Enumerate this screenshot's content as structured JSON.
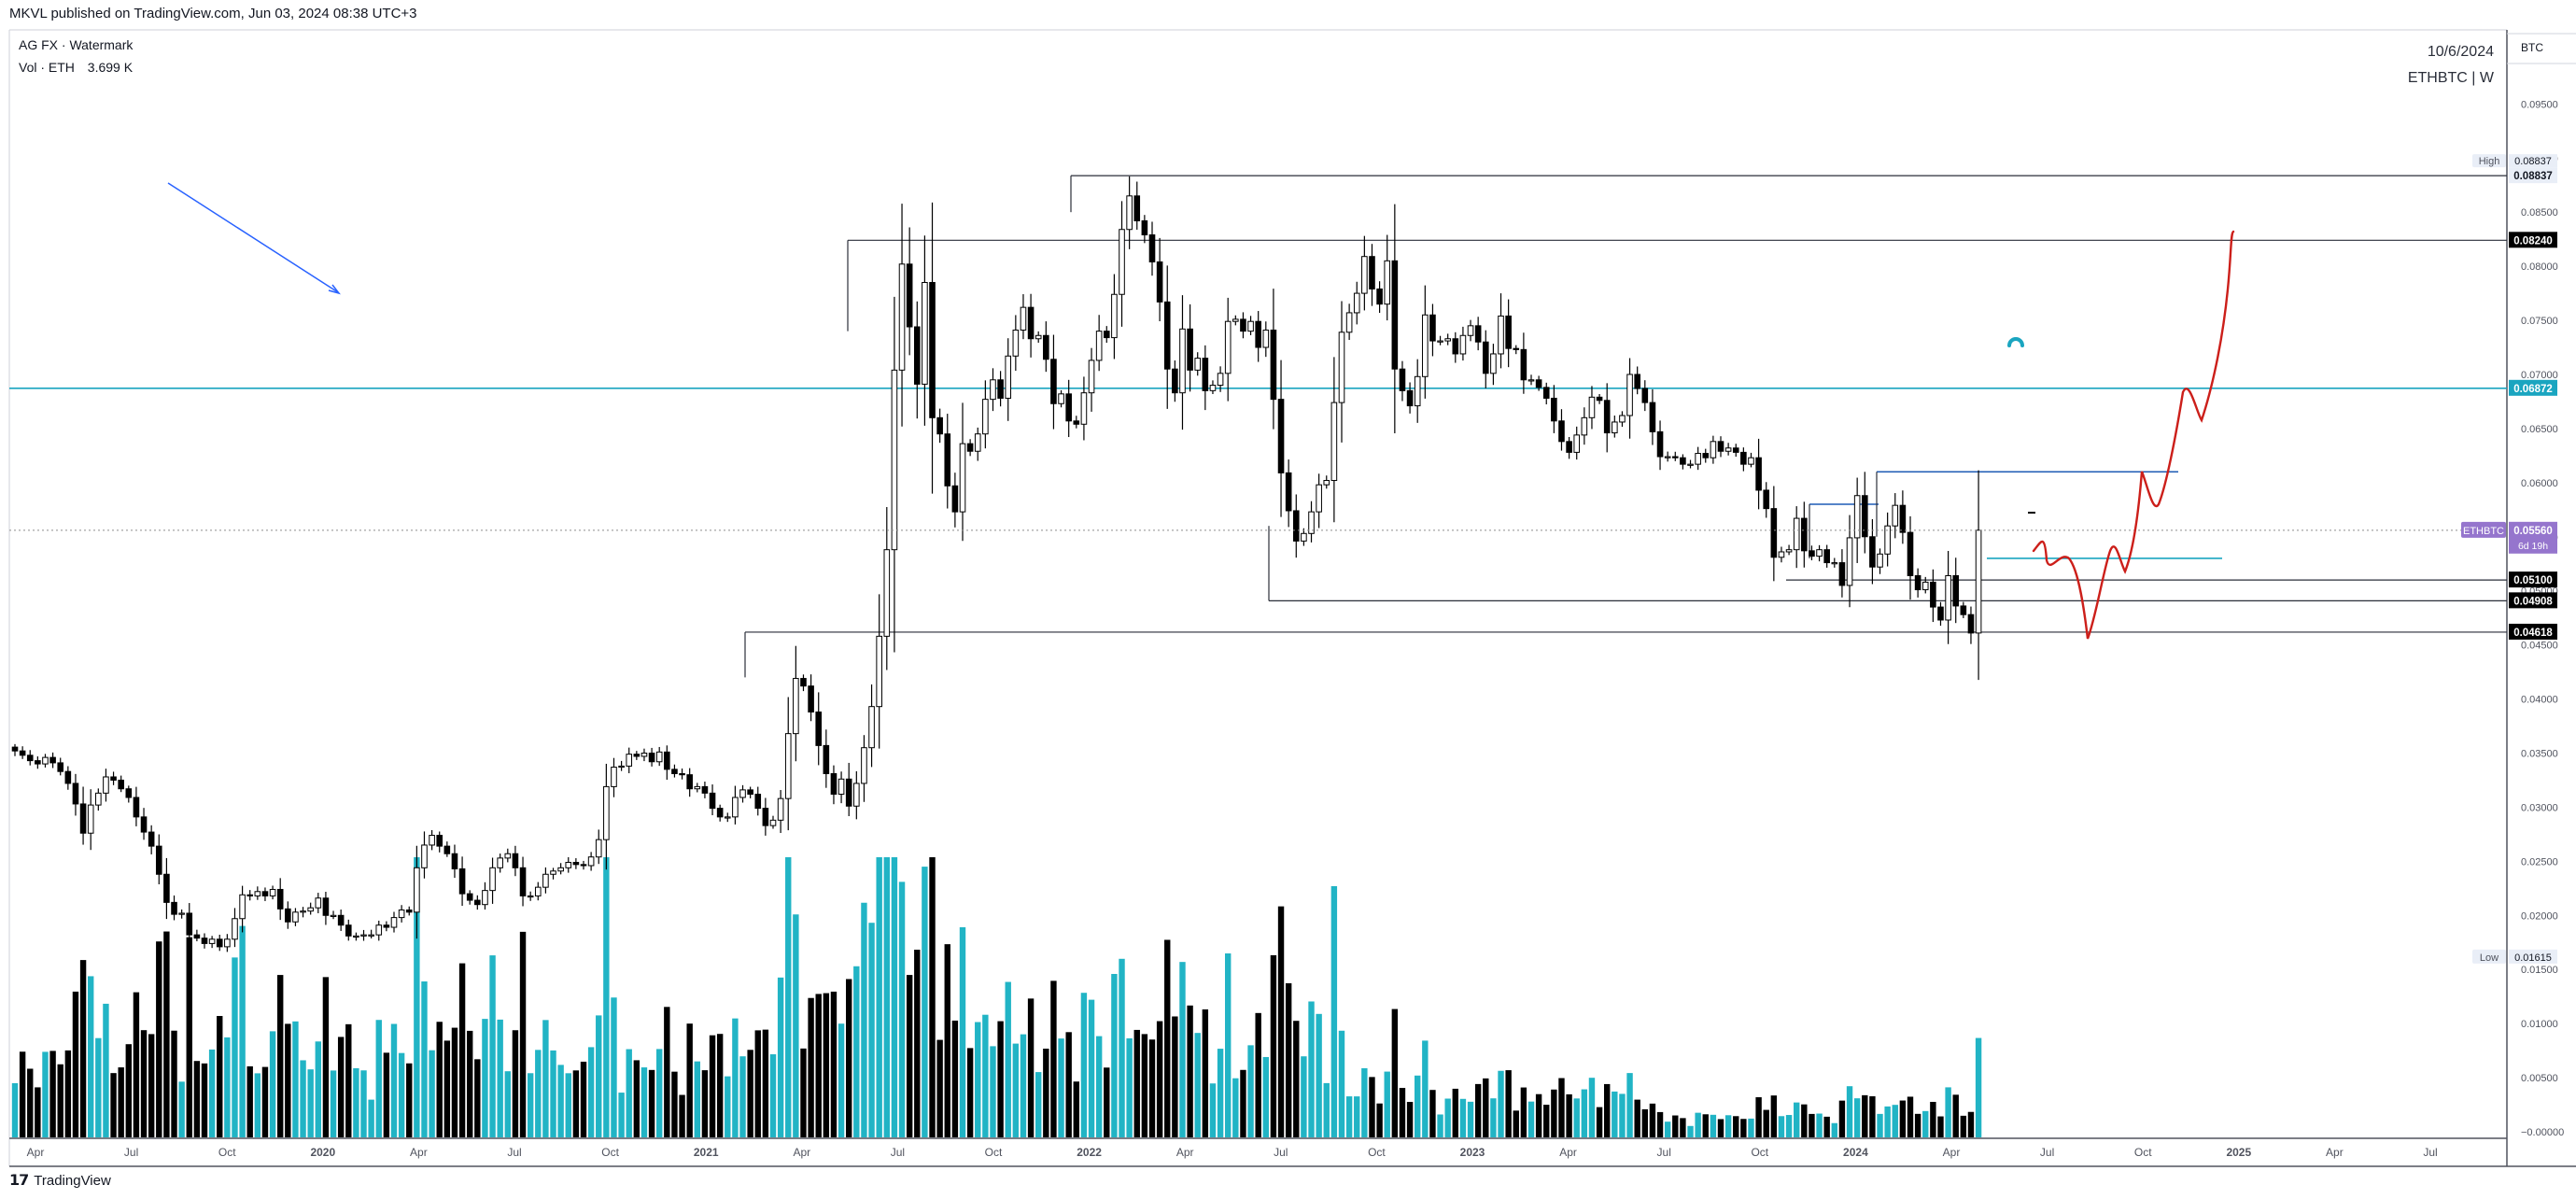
{
  "header": {
    "published": "MKVL published on TradingView.com, Jun 03, 2024 08:38 UTC+3"
  },
  "legend": {
    "title": "AG FX · Watermark",
    "volume_label": "Vol · ETH",
    "volume_value": "3.699 K"
  },
  "stamp": {
    "date": "10/6/2024",
    "symbol": "ETHBTC | W"
  },
  "footer": {
    "brand": "TradingView"
  },
  "colors": {
    "bull_candle": "#ffffff",
    "bear_candle": "#000000",
    "volume_up": "#21b4c5",
    "volume_down": "#000000",
    "horizontal_line": "#1aa5c0",
    "drawing_red": "#cc1f1a",
    "price_label_ethbtc": "#9575cd"
  },
  "chart_data": {
    "type": "candlestick",
    "currency": "BTC",
    "x_ticks": [
      "Apr",
      "Jul",
      "Oct",
      "2020",
      "Apr",
      "Jul",
      "Oct",
      "2021",
      "Apr",
      "Jul",
      "Oct",
      "2022",
      "Apr",
      "Jul",
      "Oct",
      "2023",
      "Apr",
      "Jul",
      "Oct",
      "2024",
      "Apr",
      "Jul",
      "Oct",
      "2025",
      "Apr",
      "Jul"
    ],
    "y_ticks": [
      "0.09500",
      "0.09000",
      "0.08500",
      "0.08000",
      "0.07500",
      "0.07000",
      "0.06500",
      "0.06000",
      "0.05500",
      "0.05000",
      "0.04500",
      "0.04000",
      "0.03500",
      "0.03000",
      "0.02500",
      "0.02000",
      "0.01500",
      "0.01000",
      "0.00500",
      "−0.00000"
    ],
    "y_range": [
      0.0,
      0.097
    ],
    "price_labels": {
      "high": {
        "tag": "High",
        "value": "0.08837"
      },
      "r1": {
        "value": "0.08240"
      },
      "r2": {
        "value": "0.06872"
      },
      "current": {
        "tag": "ETHBTC",
        "value": "0.05560",
        "countdown": "6d 19h"
      },
      "s1": {
        "value": "0.05100"
      },
      "s2": {
        "value": "0.04908"
      },
      "s3": {
        "value": "0.04618"
      },
      "low": {
        "tag": "Low",
        "value": "0.01615"
      }
    },
    "closes": [
      0.0352,
      0.0348,
      0.0343,
      0.034,
      0.0346,
      0.0341,
      0.0333,
      0.0322,
      0.0303,
      0.0276,
      0.0302,
      0.0313,
      0.0328,
      0.0325,
      0.0317,
      0.0309,
      0.0291,
      0.0277,
      0.0264,
      0.0238,
      0.0212,
      0.0201,
      0.0202,
      0.0182,
      0.0179,
      0.0174,
      0.0178,
      0.0171,
      0.0178,
      0.0197,
      0.0219,
      0.0218,
      0.0222,
      0.0218,
      0.0224,
      0.0206,
      0.0194,
      0.0203,
      0.0204,
      0.0207,
      0.0216,
      0.02,
      0.02,
      0.0191,
      0.0181,
      0.0181,
      0.0182,
      0.0182,
      0.0191,
      0.0189,
      0.0198,
      0.0205,
      0.0203,
      0.0244,
      0.0265,
      0.0274,
      0.0264,
      0.0257,
      0.0243,
      0.022,
      0.0214,
      0.021,
      0.0223,
      0.0244,
      0.0253,
      0.0257,
      0.0244,
      0.0218,
      0.0218,
      0.0226,
      0.0238,
      0.0241,
      0.0244,
      0.0249,
      0.0247,
      0.0246,
      0.0254,
      0.027,
      0.0319,
      0.0337,
      0.0338,
      0.0349,
      0.0347,
      0.035,
      0.0342,
      0.0351,
      0.0335,
      0.0331,
      0.033,
      0.0317,
      0.0319,
      0.0313,
      0.0299,
      0.0291,
      0.0291,
      0.0309,
      0.0316,
      0.0312,
      0.0299,
      0.0283,
      0.0288,
      0.0308,
      0.0368,
      0.0419,
      0.0412,
      0.0388,
      0.0357,
      0.0331,
      0.0312,
      0.0326,
      0.0301,
      0.0322,
      0.0355,
      0.0393,
      0.0458,
      0.0538,
      0.0704,
      0.0802,
      0.0744,
      0.0691,
      0.0785,
      0.066,
      0.0645,
      0.0597,
      0.0573,
      0.0636,
      0.0629,
      0.0645,
      0.0677,
      0.0695,
      0.0678,
      0.0717,
      0.0741,
      0.0762,
      0.0733,
      0.0736,
      0.0714,
      0.0673,
      0.0682,
      0.0657,
      0.0654,
      0.0683,
      0.0713,
      0.074,
      0.0734,
      0.0774,
      0.0834,
      0.0865,
      0.0842,
      0.0829,
      0.0804,
      0.0767,
      0.0705,
      0.0683,
      0.0742,
      0.0704,
      0.0715,
      0.0685,
      0.069,
      0.0701,
      0.0749,
      0.0751,
      0.074,
      0.0749,
      0.0725,
      0.0741,
      0.0677,
      0.0609,
      0.0574,
      0.0546,
      0.0553,
      0.0573,
      0.0598,
      0.0602,
      0.0674,
      0.0739,
      0.0757,
      0.0775,
      0.0809,
      0.0779,
      0.0765,
      0.0805,
      0.0705,
      0.0685,
      0.0671,
      0.0698,
      0.0755,
      0.0731,
      0.0731,
      0.0733,
      0.0719,
      0.0736,
      0.0745,
      0.073,
      0.0701,
      0.0719,
      0.0754,
      0.0724,
      0.0723,
      0.0695,
      0.0695,
      0.0688,
      0.0678,
      0.0657,
      0.0638,
      0.0628,
      0.0644,
      0.066,
      0.0679,
      0.0676,
      0.0646,
      0.0656,
      0.0662,
      0.07,
      0.0687,
      0.0674,
      0.0647,
      0.0624,
      0.0624,
      0.0623,
      0.0617,
      0.0617,
      0.0627,
      0.0623,
      0.0638,
      0.0629,
      0.0632,
      0.0628,
      0.0617,
      0.0623,
      0.0593,
      0.0576,
      0.0531,
      0.0536,
      0.0538,
      0.0567,
      0.0537,
      0.0532,
      0.0538,
      0.0526,
      0.0526,
      0.0505,
      0.0549,
      0.0588,
      0.055,
      0.0522,
      0.0534,
      0.056,
      0.0579,
      0.0554,
      0.0514,
      0.0501,
      0.0508,
      0.0485,
      0.0473,
      0.0514,
      0.0486,
      0.0478,
      0.0461,
      0.0556
    ]
  }
}
